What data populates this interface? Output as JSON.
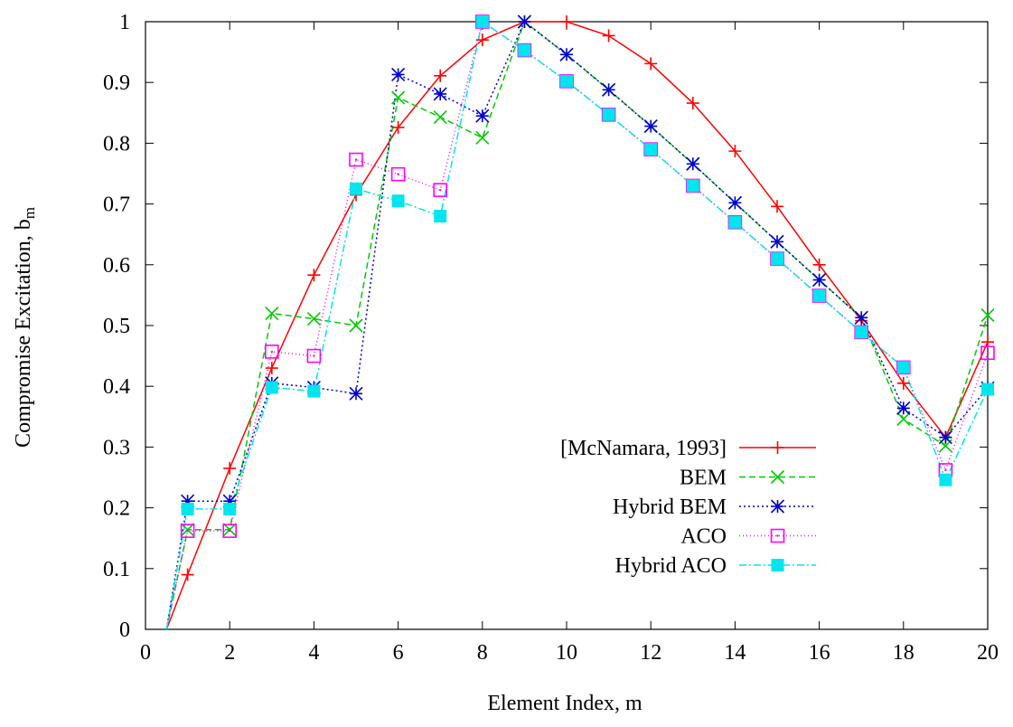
{
  "chart_data": {
    "type": "line",
    "title": "",
    "xlabel": "Element Index, m",
    "ylabel": "Compromise Excitation, b",
    "ylabel_sub": "m",
    "xlim": [
      0,
      20
    ],
    "ylim": [
      0,
      1
    ],
    "xticks": [
      0,
      2,
      4,
      6,
      8,
      10,
      12,
      14,
      16,
      18,
      20
    ],
    "yticks": [
      0,
      0.1,
      0.2,
      0.3,
      0.4,
      0.5,
      0.6,
      0.7,
      0.8,
      0.9,
      1
    ],
    "xtick_labels": [
      "0",
      "2",
      "4",
      "6",
      "8",
      "10",
      "12",
      "14",
      "16",
      "18",
      "20"
    ],
    "ytick_labels": [
      "0",
      "0.1",
      "0.2",
      "0.3",
      "0.4",
      "0.5",
      "0.6",
      "0.7",
      "0.8",
      "0.9",
      "1"
    ],
    "grid": false,
    "legend_position": "bottom-right",
    "series": [
      {
        "name": "[McNamara, 1993]",
        "color": "#ff0000",
        "dash": "none",
        "marker": "plus",
        "x": [
          0.5,
          1,
          2,
          3,
          4,
          5,
          6,
          7,
          8,
          9,
          10,
          11,
          12,
          13,
          14,
          15,
          16,
          17,
          18,
          19,
          20
        ],
        "y": [
          0,
          0.09,
          0.265,
          0.43,
          0.583,
          0.715,
          0.826,
          0.911,
          0.97,
          1.0,
          1.0,
          0.977,
          0.931,
          0.866,
          0.787,
          0.696,
          0.6,
          0.508,
          0.405,
          0.316,
          0.473
        ]
      },
      {
        "name": "BEM",
        "color": "#00cc00",
        "dash": "7,4",
        "marker": "cross",
        "x": [
          0.5,
          1,
          2,
          3,
          4,
          5,
          6,
          7,
          8,
          9,
          10,
          11,
          12,
          13,
          14,
          15,
          16,
          17,
          18,
          19,
          20
        ],
        "y": [
          0,
          0.164,
          0.164,
          0.52,
          0.511,
          0.5,
          0.875,
          0.843,
          0.809,
          1.0,
          0.946,
          0.888,
          0.828,
          0.766,
          0.702,
          0.638,
          0.575,
          0.513,
          0.346,
          0.302,
          0.517
        ]
      },
      {
        "name": "Hybrid BEM",
        "color": "#0000cc",
        "dash": "2,3",
        "marker": "star",
        "x": [
          0.5,
          1,
          2,
          3,
          4,
          5,
          6,
          7,
          8,
          9,
          10,
          11,
          12,
          13,
          14,
          15,
          16,
          17,
          18,
          19,
          20
        ],
        "y": [
          0,
          0.211,
          0.211,
          0.405,
          0.398,
          0.388,
          0.913,
          0.881,
          0.845,
          1.0,
          0.946,
          0.888,
          0.828,
          0.766,
          0.702,
          0.638,
          0.575,
          0.513,
          0.364,
          0.316,
          0.397
        ]
      },
      {
        "name": "ACO",
        "color": "#ff00ff",
        "dash": "1,3",
        "marker": "square-open",
        "x": [
          0.5,
          1,
          2,
          3,
          4,
          5,
          6,
          7,
          8,
          9,
          10,
          11,
          12,
          13,
          14,
          15,
          16,
          17,
          18,
          19,
          20
        ],
        "y": [
          0,
          0.162,
          0.162,
          0.457,
          0.45,
          0.773,
          0.749,
          0.723,
          1.0,
          0.953,
          0.902,
          0.847,
          0.79,
          0.73,
          0.67,
          0.61,
          0.549,
          0.489,
          0.431,
          0.262,
          0.455
        ]
      },
      {
        "name": "Hybrid ACO",
        "color": "#00e5ee",
        "dash": "8,3,2,3",
        "marker": "square-filled",
        "x": [
          0.5,
          1,
          2,
          3,
          4,
          5,
          6,
          7,
          8,
          9,
          10,
          11,
          12,
          13,
          14,
          15,
          16,
          17,
          18,
          19,
          20
        ],
        "y": [
          0,
          0.198,
          0.198,
          0.398,
          0.392,
          0.725,
          0.705,
          0.68,
          1.0,
          0.953,
          0.902,
          0.847,
          0.79,
          0.73,
          0.67,
          0.61,
          0.549,
          0.489,
          0.431,
          0.246,
          0.395
        ]
      }
    ]
  }
}
